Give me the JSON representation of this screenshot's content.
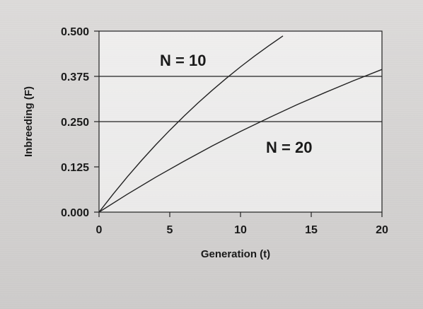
{
  "chart_data": {
    "type": "line",
    "title": "",
    "xlabel": "Generation (t)",
    "ylabel": "Inbreeding (F)",
    "xlim": [
      0,
      20
    ],
    "ylim": [
      0,
      0.5
    ],
    "x_ticks": [
      0,
      5,
      10,
      15,
      20
    ],
    "y_ticks": [
      0.0,
      0.125,
      0.25,
      0.375,
      0.5
    ],
    "x_tick_labels": [
      "0",
      "5",
      "10",
      "15",
      "20"
    ],
    "y_tick_labels": [
      "0.000",
      "0.125",
      "0.250",
      "0.375",
      "0.500"
    ],
    "horizontal_lines": [
      0.25,
      0.375
    ],
    "grid": false,
    "series": [
      {
        "name": "N = 10",
        "x": [
          0,
          1,
          2,
          3,
          4,
          5,
          6,
          7,
          8,
          9,
          10,
          11,
          12,
          13
        ],
        "values": [
          0.0,
          0.05,
          0.0975,
          0.1426,
          0.1855,
          0.2262,
          0.2649,
          0.3017,
          0.3366,
          0.3698,
          0.4013,
          0.4312,
          0.4596,
          0.4867
        ]
      },
      {
        "name": "N = 20",
        "x": [
          0,
          2,
          4,
          6,
          8,
          10,
          12,
          14,
          16,
          18,
          20
        ],
        "values": [
          0.0,
          0.0494,
          0.0963,
          0.1405,
          0.1829,
          0.2229,
          0.2605,
          0.2968,
          0.3306,
          0.3632,
          0.3942
        ]
      }
    ]
  }
}
